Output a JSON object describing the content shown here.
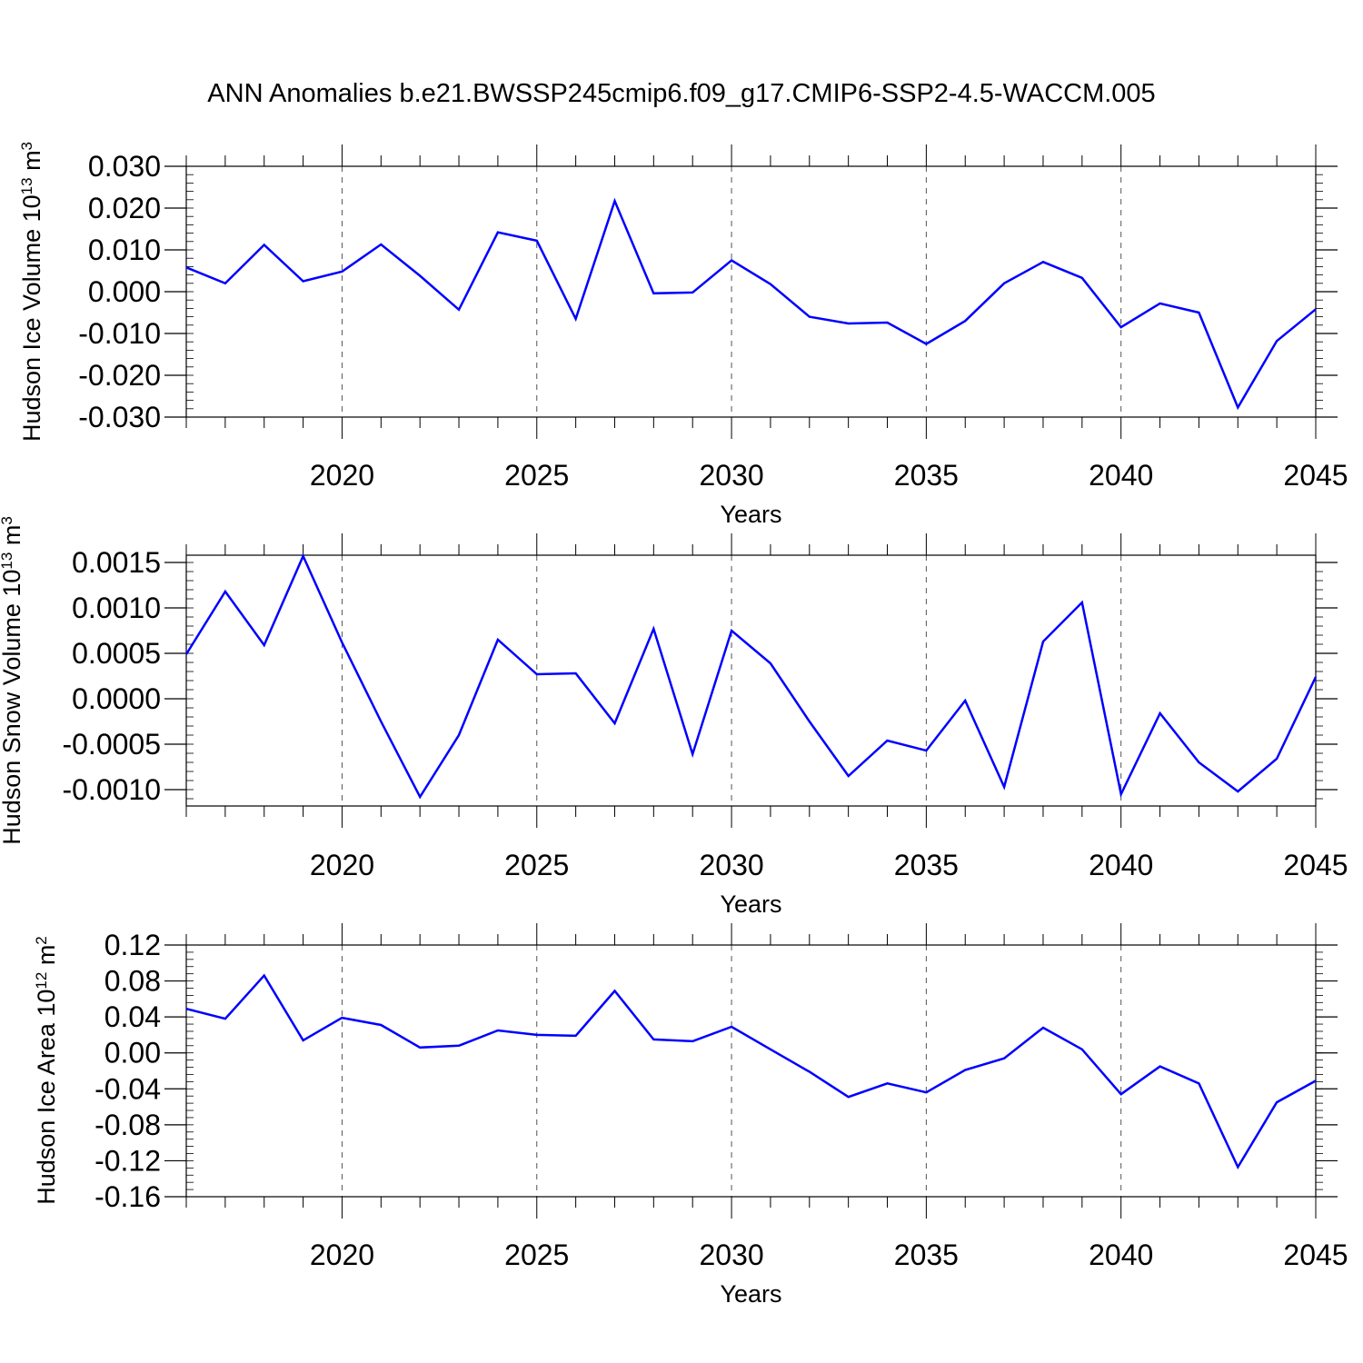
{
  "title": "ANN Anomalies b.e21.BWSSP245cmip6.f09_g17.CMIP6-SSP2-4.5-WACCM.005",
  "colors": {
    "line": "#0000ff",
    "axis": "#000000",
    "grid": "#555555"
  },
  "chart_data": [
    {
      "type": "line",
      "ylabel": {
        "text": "Hudson Ice Volume 10",
        "exp": "13",
        "unit": " m",
        "unit_exp": "3"
      },
      "xlabel": "Years",
      "xlim": [
        2016,
        2045
      ],
      "ylim": [
        -0.03,
        0.03
      ],
      "x_ticks": [
        2020,
        2025,
        2030,
        2035,
        2040,
        2045
      ],
      "y_ticks": [
        -0.03,
        -0.02,
        -0.01,
        0.0,
        0.01,
        0.02,
        0.03
      ],
      "y_tick_labels": [
        "-0.030",
        "-0.020",
        "-0.010",
        "0.000",
        "0.010",
        "0.020",
        "0.030"
      ],
      "grid": "vertical dashed at major x ticks",
      "x": [
        2016,
        2017,
        2018,
        2019,
        2020,
        2021,
        2022,
        2023,
        2024,
        2025,
        2026,
        2027,
        2028,
        2029,
        2030,
        2031,
        2032,
        2033,
        2034,
        2035,
        2036,
        2037,
        2038,
        2039,
        2040,
        2041,
        2042,
        2043,
        2044,
        2045
      ],
      "series": [
        {
          "values": [
            0.0058,
            0.002,
            0.0112,
            0.0025,
            0.0048,
            0.0113,
            0.0038,
            -0.0043,
            0.0142,
            0.0122,
            -0.0065,
            0.0217,
            -0.0004,
            -0.0002,
            0.0075,
            0.0018,
            -0.006,
            -0.0076,
            -0.0074,
            -0.0125,
            -0.007,
            0.002,
            0.0071,
            0.0033,
            -0.0085,
            -0.0028,
            -0.005,
            -0.0277,
            -0.0118,
            -0.0042
          ]
        }
      ]
    },
    {
      "type": "line",
      "ylabel": {
        "text": "Hudson Snow Volume 10",
        "exp": "13",
        "unit": " m",
        "unit_exp": "3"
      },
      "xlabel": "Years",
      "xlim": [
        2016,
        2045
      ],
      "ylim": [
        -0.00118,
        0.00158
      ],
      "x_ticks": [
        2020,
        2025,
        2030,
        2035,
        2040,
        2045
      ],
      "y_ticks": [
        -0.001,
        -0.0005,
        0.0,
        0.0005,
        0.001,
        0.0015
      ],
      "y_tick_labels": [
        "-0.0010",
        "-0.0005",
        "0.0000",
        "0.0005",
        "0.0010",
        "0.0015"
      ],
      "grid": "vertical dashed at major x ticks",
      "x": [
        2016,
        2017,
        2018,
        2019,
        2020,
        2021,
        2022,
        2023,
        2024,
        2025,
        2026,
        2027,
        2028,
        2029,
        2030,
        2031,
        2032,
        2033,
        2034,
        2035,
        2036,
        2037,
        2038,
        2039,
        2040,
        2041,
        2042,
        2043,
        2044,
        2045
      ],
      "series": [
        {
          "values": [
            0.00049,
            0.00118,
            0.00059,
            0.00157,
            0.00062,
            -0.00025,
            -0.00108,
            -0.0004,
            0.00065,
            0.00027,
            0.00028,
            -0.00027,
            0.00077,
            -0.00061,
            0.00075,
            0.00039,
            -0.00025,
            -0.00085,
            -0.00046,
            -0.00057,
            -2e-05,
            -0.00097,
            0.00063,
            0.00106,
            -0.00105,
            -0.00016,
            -0.0007,
            -0.00102,
            -0.00066,
            0.00024
          ]
        }
      ]
    },
    {
      "type": "line",
      "ylabel": {
        "text": "Hudson Ice Area 10",
        "exp": "12",
        "unit": " m",
        "unit_exp": "2"
      },
      "xlabel": "Years",
      "xlim": [
        2016,
        2045
      ],
      "ylim": [
        -0.16,
        0.12
      ],
      "x_ticks": [
        2020,
        2025,
        2030,
        2035,
        2040,
        2045
      ],
      "y_ticks": [
        -0.16,
        -0.12,
        -0.08,
        -0.04,
        0.0,
        0.04,
        0.08,
        0.12
      ],
      "y_tick_labels": [
        "-0.16",
        "-0.12",
        "-0.08",
        "-0.04",
        "0.00",
        "0.04",
        "0.08",
        "0.12"
      ],
      "grid": "vertical dashed at major x ticks",
      "x": [
        2016,
        2017,
        2018,
        2019,
        2020,
        2021,
        2022,
        2023,
        2024,
        2025,
        2026,
        2027,
        2028,
        2029,
        2030,
        2031,
        2032,
        2033,
        2034,
        2035,
        2036,
        2037,
        2038,
        2039,
        2040,
        2041,
        2042,
        2043,
        2044,
        2045
      ],
      "series": [
        {
          "values": [
            0.049,
            0.038,
            0.086,
            0.014,
            0.039,
            0.031,
            0.006,
            0.008,
            0.025,
            0.02,
            0.019,
            0.069,
            0.015,
            0.013,
            0.029,
            0.004,
            -0.021,
            -0.049,
            -0.034,
            -0.044,
            -0.019,
            -0.006,
            0.028,
            0.004,
            -0.046,
            -0.015,
            -0.034,
            -0.127,
            -0.055,
            -0.031
          ]
        }
      ]
    }
  ]
}
